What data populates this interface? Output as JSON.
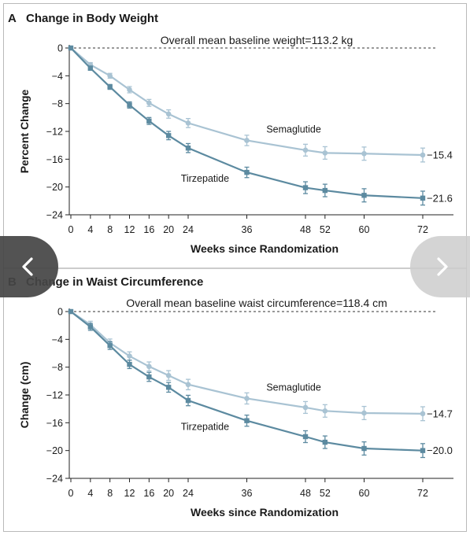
{
  "chart_data": [
    {
      "type": "line",
      "panel": "A",
      "title": "Change in Body Weight",
      "annotation": "Overall mean baseline weight=113.2 kg",
      "xlabel": "Weeks since Randomization",
      "ylabel": "Percent Change",
      "xticks": [
        0,
        4,
        8,
        12,
        16,
        20,
        24,
        36,
        48,
        52,
        60,
        72
      ],
      "yticks": [
        0,
        -4,
        -8,
        -12,
        -16,
        -20,
        -24
      ],
      "ytick_labels": [
        "0",
        "−4",
        "−8",
        "−12",
        "−16",
        "−20",
        "−24"
      ],
      "xlim": [
        0,
        72
      ],
      "ylim": [
        -24,
        0
      ],
      "grid": false,
      "series": [
        {
          "name": "Semaglutide",
          "color": "#a9c3d3",
          "marker": "circle",
          "end_label": "−15.4",
          "x": [
            0,
            4,
            8,
            12,
            16,
            20,
            24,
            36,
            48,
            52,
            60,
            72
          ],
          "y": [
            0,
            -2.4,
            -4.0,
            -6.0,
            -7.9,
            -9.5,
            -10.8,
            -13.3,
            -14.7,
            -15.1,
            -15.2,
            -15.4
          ],
          "err": [
            0,
            0.3,
            0.35,
            0.45,
            0.5,
            0.6,
            0.65,
            0.75,
            0.85,
            0.9,
            0.95,
            1.0
          ]
        },
        {
          "name": "Tirzepatide",
          "color": "#5c8aa0",
          "marker": "square",
          "end_label": "−21.6",
          "x": [
            0,
            4,
            8,
            12,
            16,
            20,
            24,
            36,
            48,
            52,
            60,
            72
          ],
          "y": [
            0,
            -2.9,
            -5.6,
            -8.2,
            -10.5,
            -12.6,
            -14.4,
            -17.9,
            -20.1,
            -20.5,
            -21.2,
            -21.6
          ],
          "err": [
            0,
            0.3,
            0.35,
            0.45,
            0.5,
            0.6,
            0.65,
            0.75,
            0.85,
            0.9,
            0.95,
            1.0
          ]
        }
      ]
    },
    {
      "type": "line",
      "panel": "B",
      "title": "Change in Waist Circumference",
      "annotation": "Overall mean baseline waist circumference=118.4 cm",
      "xlabel": "Weeks since Randomization",
      "ylabel": "Change (cm)",
      "xticks": [
        0,
        4,
        8,
        12,
        16,
        20,
        24,
        36,
        48,
        52,
        60,
        72
      ],
      "yticks": [
        0,
        -4,
        -8,
        -12,
        -16,
        -20,
        -24
      ],
      "ytick_labels": [
        "0",
        "−4",
        "−8",
        "−12",
        "−16",
        "−20",
        "−24"
      ],
      "xlim": [
        0,
        72
      ],
      "ylim": [
        -24,
        0
      ],
      "grid": false,
      "series": [
        {
          "name": "Semaglutide",
          "color": "#a9c3d3",
          "marker": "circle",
          "end_label": "−14.7",
          "x": [
            0,
            4,
            8,
            12,
            16,
            20,
            24,
            36,
            48,
            52,
            60,
            72
          ],
          "y": [
            0,
            -1.9,
            -4.5,
            -6.4,
            -7.9,
            -9.2,
            -10.5,
            -12.5,
            -13.8,
            -14.3,
            -14.6,
            -14.7
          ],
          "err": [
            0,
            0.5,
            0.55,
            0.6,
            0.65,
            0.7,
            0.75,
            0.8,
            0.85,
            0.9,
            0.95,
            1.0
          ]
        },
        {
          "name": "Tirzepatide",
          "color": "#5c8aa0",
          "marker": "square",
          "end_label": "−20.0",
          "x": [
            0,
            4,
            8,
            12,
            16,
            20,
            24,
            36,
            48,
            52,
            60,
            72
          ],
          "y": [
            0,
            -2.2,
            -4.9,
            -7.6,
            -9.4,
            -10.9,
            -12.8,
            -15.7,
            -18.0,
            -18.8,
            -19.7,
            -20.0
          ],
          "err": [
            0,
            0.5,
            0.55,
            0.6,
            0.65,
            0.7,
            0.75,
            0.8,
            0.85,
            0.9,
            0.95,
            1.0
          ]
        }
      ]
    }
  ],
  "navigation": {
    "prev_icon": "chevron-left-icon",
    "next_icon": "chevron-right-icon"
  }
}
